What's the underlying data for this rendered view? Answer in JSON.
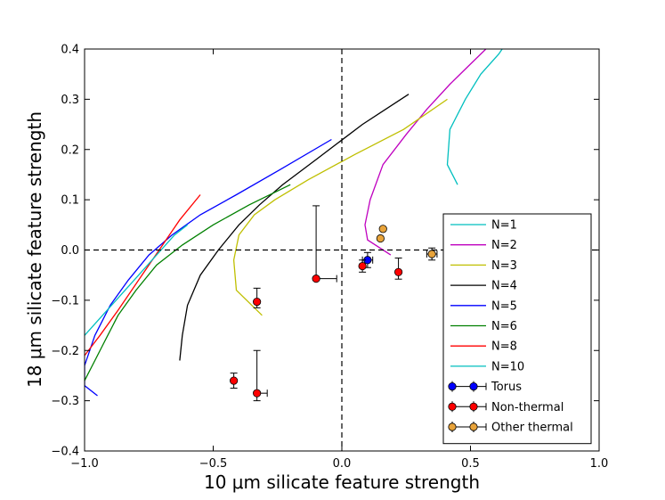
{
  "chart_data": {
    "type": "line",
    "title": "",
    "xlabel": "10 μm silicate feature strength",
    "ylabel": "18 μm silicate feature strength",
    "xlim": [
      -1.0,
      1.0
    ],
    "ylim": [
      -0.4,
      0.4
    ],
    "xticks": [
      -1.0,
      -0.5,
      0.0,
      0.5,
      1.0
    ],
    "xtick_labels": [
      "−1.0",
      "−0.5",
      "0.0",
      "0.5",
      "1.0"
    ],
    "yticks": [
      -0.4,
      -0.3,
      -0.2,
      -0.1,
      0.0,
      0.1,
      0.2,
      0.3,
      0.4
    ],
    "ytick_labels": [
      "−0.4",
      "−0.3",
      "−0.2",
      "−0.1",
      "0.0",
      "0.1",
      "0.2",
      "0.3",
      "0.4"
    ],
    "reference_lines": {
      "x0": true,
      "y0": true,
      "style": "dashed"
    },
    "legend_position": "lower-right",
    "series": [
      {
        "name": "N=1",
        "color": "#00bfbf",
        "x": [
          0.45,
          0.41,
          0.42,
          0.48,
          0.54,
          0.61,
          0.65
        ],
        "y": [
          0.13,
          0.17,
          0.24,
          0.3,
          0.35,
          0.39,
          0.42
        ]
      },
      {
        "name": "N=2",
        "color": "#bf00bf",
        "x": [
          0.19,
          0.1,
          0.09,
          0.11,
          0.16,
          0.25,
          0.33,
          0.42,
          0.5,
          0.56
        ],
        "y": [
          -0.01,
          0.02,
          0.05,
          0.1,
          0.17,
          0.23,
          0.28,
          0.33,
          0.37,
          0.4
        ]
      },
      {
        "name": "N=3",
        "color": "#bfbf00",
        "x": [
          -0.31,
          -0.41,
          -0.42,
          -0.4,
          -0.34,
          -0.26,
          -0.13,
          0.05,
          0.24,
          0.41
        ],
        "y": [
          -0.13,
          -0.08,
          -0.02,
          0.03,
          0.07,
          0.1,
          0.14,
          0.19,
          0.24,
          0.3
        ]
      },
      {
        "name": "N=4",
        "color": "#000000",
        "x": [
          -0.63,
          -0.62,
          -0.6,
          -0.55,
          -0.48,
          -0.4,
          -0.32,
          -0.23,
          -0.1,
          0.08,
          0.26
        ],
        "y": [
          -0.22,
          -0.17,
          -0.11,
          -0.05,
          0.0,
          0.05,
          0.09,
          0.13,
          0.18,
          0.25,
          0.31
        ]
      },
      {
        "name": "N=5",
        "color": "#0000ff",
        "x": [
          -0.95,
          -1.0,
          -1.0,
          -0.96,
          -0.9,
          -0.83,
          -0.75,
          -0.66,
          -0.55,
          -0.41,
          -0.24,
          -0.04
        ],
        "y": [
          -0.29,
          -0.27,
          -0.23,
          -0.17,
          -0.11,
          -0.06,
          -0.01,
          0.03,
          0.07,
          0.11,
          0.16,
          0.22
        ]
      },
      {
        "name": "N=6",
        "color": "#008000",
        "x": [
          -1.0,
          -0.96,
          -0.92,
          -0.87,
          -0.8,
          -0.72,
          -0.62,
          -0.5,
          -0.36,
          -0.2
        ],
        "y": [
          -0.26,
          -0.22,
          -0.18,
          -0.13,
          -0.08,
          -0.03,
          0.01,
          0.05,
          0.09,
          0.13
        ]
      },
      {
        "name": "N=8",
        "color": "#ff0000",
        "x": [
          -1.0,
          -0.94,
          -0.87,
          -0.79,
          -0.71,
          -0.63,
          -0.55
        ],
        "y": [
          -0.21,
          -0.17,
          -0.12,
          -0.06,
          0.0,
          0.06,
          0.11
        ]
      },
      {
        "name": "N=10",
        "color": "#00bfbf",
        "x": [
          -1.0,
          -0.93,
          -0.86,
          -0.79,
          -0.72,
          -0.65,
          -0.6
        ],
        "y": [
          -0.17,
          -0.13,
          -0.09,
          -0.05,
          -0.01,
          0.03,
          0.05
        ]
      }
    ],
    "points": [
      {
        "group": "Torus",
        "color": "#0000ff",
        "x": 0.1,
        "y": -0.02,
        "xerr": [
          0.02,
          0.02
        ],
        "yerr": [
          0.015,
          0.015
        ]
      },
      {
        "group": "Non-thermal",
        "color": "#ff0000",
        "x": -0.42,
        "y": -0.26,
        "xerr": [
          0.0,
          0.0
        ],
        "yerr": [
          0.015,
          0.015
        ]
      },
      {
        "group": "Non-thermal",
        "color": "#ff0000",
        "x": -0.33,
        "y": -0.285,
        "xerr": [
          0.0,
          0.04
        ],
        "yerr": [
          0.015,
          0.085
        ]
      },
      {
        "group": "Non-thermal",
        "color": "#ff0000",
        "x": -0.33,
        "y": -0.103,
        "xerr": [
          0.0,
          0.0
        ],
        "yerr": [
          0.012,
          0.027
        ]
      },
      {
        "group": "Non-thermal",
        "color": "#ff0000",
        "x": -0.1,
        "y": -0.057,
        "xerr": [
          0.0,
          0.08
        ],
        "yerr": [
          0.0,
          0.145
        ]
      },
      {
        "group": "Non-thermal",
        "color": "#ff0000",
        "x": 0.08,
        "y": -0.032,
        "xerr": [
          0.0,
          0.0
        ],
        "yerr": [
          0.012,
          0.012
        ]
      },
      {
        "group": "Non-thermal",
        "color": "#ff0000",
        "x": 0.22,
        "y": -0.044,
        "xerr": [
          0.0,
          0.0
        ],
        "yerr": [
          0.014,
          0.028
        ]
      },
      {
        "group": "Other thermal",
        "color": "#e8a33a",
        "x": 0.16,
        "y": 0.042,
        "xerr": [
          0.0,
          0.0
        ],
        "yerr": [
          0.0,
          0.0
        ]
      },
      {
        "group": "Other thermal",
        "color": "#e8a33a",
        "x": 0.15,
        "y": 0.023,
        "xerr": [
          0.0,
          0.0
        ],
        "yerr": [
          0.0,
          0.0
        ]
      },
      {
        "group": "Other thermal",
        "color": "#e8a33a",
        "x": 0.35,
        "y": -0.008,
        "xerr": [
          0.02,
          0.02
        ],
        "yerr": [
          0.012,
          0.012
        ]
      }
    ],
    "legend": [
      {
        "label": "N=1",
        "kind": "line",
        "color": "#00bfbf"
      },
      {
        "label": "N=2",
        "kind": "line",
        "color": "#bf00bf"
      },
      {
        "label": "N=3",
        "kind": "line",
        "color": "#bfbf00"
      },
      {
        "label": "N=4",
        "kind": "line",
        "color": "#000000"
      },
      {
        "label": "N=5",
        "kind": "line",
        "color": "#0000ff"
      },
      {
        "label": "N=6",
        "kind": "line",
        "color": "#008000"
      },
      {
        "label": "N=8",
        "kind": "line",
        "color": "#ff0000"
      },
      {
        "label": "N=10",
        "kind": "line",
        "color": "#00bfbf"
      },
      {
        "label": "Torus",
        "kind": "marker",
        "color": "#0000ff"
      },
      {
        "label": "Non-thermal",
        "kind": "marker",
        "color": "#ff0000"
      },
      {
        "label": "Other thermal",
        "kind": "marker",
        "color": "#e8a33a"
      }
    ]
  }
}
